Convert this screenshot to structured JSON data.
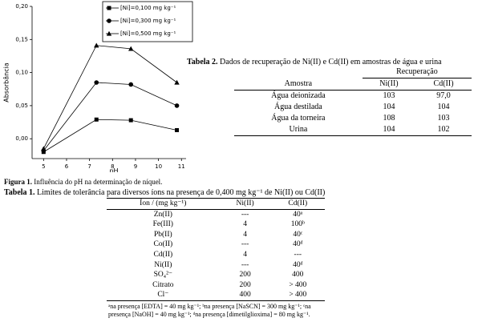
{
  "chart_data": {
    "type": "line",
    "ylabel": "Absorbância",
    "xlabel": "pH",
    "x": [
      5.0,
      7.3,
      8.8,
      10.8
    ],
    "xlim": [
      4.5,
      11.2
    ],
    "xticks": [
      5,
      6,
      7,
      8,
      9,
      10,
      11
    ],
    "ylim": [
      -0.03,
      0.2
    ],
    "yticks": [
      {
        "value": 0,
        "label": "0,00"
      },
      {
        "value": 0.05,
        "label": "0,05"
      },
      {
        "value": 0.1,
        "label": "0,10"
      },
      {
        "value": 0.15,
        "label": "0,15"
      },
      {
        "value": 0.2,
        "label": "0,20"
      }
    ],
    "grid": false,
    "legend": "top-right",
    "series": [
      {
        "name": "[Ni]=0,100 mg kg⁻¹",
        "color": "#000000",
        "marker": "square",
        "values": [
          -0.02,
          0.029,
          0.028,
          0.013
        ]
      },
      {
        "name": "[Ni]=0,300 mg kg⁻¹",
        "color": "#000000",
        "marker": "circle",
        "values": [
          -0.018,
          0.085,
          0.082,
          0.05
        ]
      },
      {
        "name": "[Ni]=0,500 mg kg⁻¹",
        "color": "#000000",
        "marker": "triangle",
        "values": [
          -0.015,
          0.141,
          0.136,
          0.085
        ]
      }
    ]
  },
  "figure_caption": {
    "label": "Figura 1.",
    "text": "Influência do pH na determinação de níquel."
  },
  "table2": {
    "label": "Tabela 2.",
    "title": "Dados de recuperação de Ni(II) e Cd(II) em amostras de água e urina",
    "group_header": "Recuperação",
    "header": [
      "Amostra",
      "Ni(II)",
      "Cd(II)"
    ],
    "rows": [
      [
        "Água deionizada",
        "103",
        "97,0"
      ],
      [
        "Água destilada",
        "104",
        "104"
      ],
      [
        "Água da torneira",
        "108",
        "103"
      ],
      [
        "Urina",
        "104",
        "102"
      ]
    ]
  },
  "table1": {
    "label": "Tabela 1.",
    "title": "Limites de tolerância para diversos íons na presença de 0,400 mg kg⁻¹ de Ni(II) ou Cd(II)",
    "header": [
      "Íon / (mg kg⁻¹)",
      "Ni(II)",
      "Cd(II)"
    ],
    "rows": [
      [
        "Zn(II)",
        "---",
        "40ᵃ"
      ],
      [
        "Fe(III)",
        "4",
        "100ᵇ"
      ],
      [
        "Pb(II)",
        "4",
        "40ᶜ"
      ],
      [
        "Co(II)",
        "---",
        "40ᵈ"
      ],
      [
        "Cd(II)",
        "4",
        "---"
      ],
      [
        "Ni(II)",
        "---",
        "40ᵈ"
      ],
      [
        "SO₄²⁻",
        "200",
        "400"
      ],
      [
        "Citrato",
        "200",
        "> 400"
      ],
      [
        "Cl⁻",
        "400",
        "> 400"
      ]
    ],
    "footnote": "ᵃna presença [EDTA] = 40 mg kg⁻¹; ᵇna presença [NaSCN] = 300 mg kg⁻¹; ᶜna presença [NaOH] = 40 mg kg⁻¹; ᵈna presença [dimetilglioxima] = 80 mg kg⁻¹."
  }
}
